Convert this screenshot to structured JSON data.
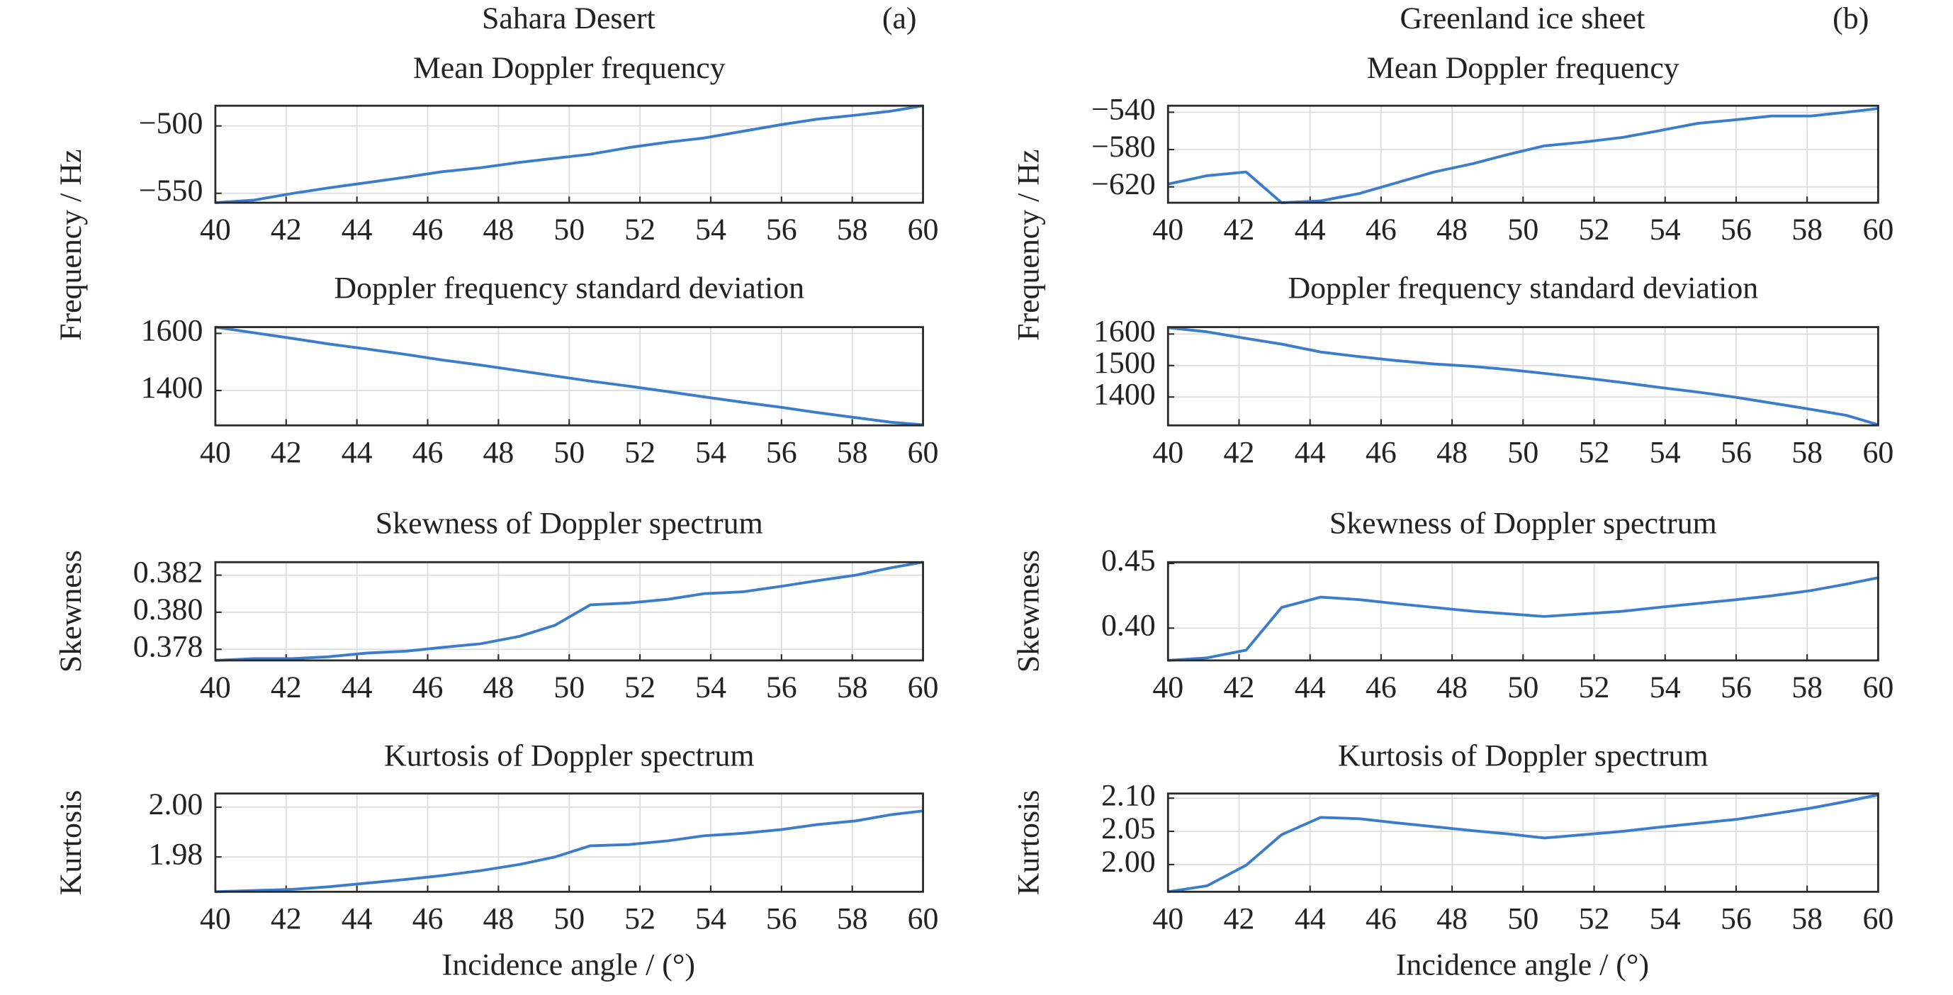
{
  "figure": {
    "columns": [
      {
        "title": "Sahara Desert",
        "tag": "(a)",
        "ylabel": "Frequency / Hz",
        "xlabel": "Incidence angle / (°)"
      },
      {
        "title": "Greenland ice sheet",
        "tag": "(b)",
        "ylabel": "Frequency / Hz",
        "xlabel": "Incidence angle / (°)"
      }
    ]
  },
  "chart_data": [
    {
      "type": "line",
      "title": "Mean Doppler frequency",
      "color": "#3c7ccc",
      "grid": true,
      "x": [
        40,
        41.1,
        42.2,
        43.2,
        44.3,
        45.4,
        46.4,
        47.5,
        48.6,
        49.6,
        50.6,
        51.7,
        52.8,
        53.8,
        54.9,
        56,
        57,
        58.1,
        59.1,
        60
      ],
      "values": [
        -557,
        -555,
        -550,
        -546,
        -542,
        -538,
        -534,
        -531,
        -527,
        -524,
        -521,
        -516,
        -512,
        -509,
        -504,
        -499,
        -495,
        -492,
        -489,
        -485
      ],
      "xlim": [
        40,
        60
      ],
      "ylim": [
        -557,
        -485
      ],
      "xticks": [
        40,
        42,
        44,
        46,
        48,
        50,
        52,
        54,
        56,
        58,
        60
      ],
      "yticks": [
        {
          "value": -550,
          "label": "−550"
        },
        {
          "value": -500,
          "label": "−500"
        }
      ]
    },
    {
      "type": "line",
      "title": "Doppler frequency standard deviation",
      "color": "#3c7ccc",
      "grid": true,
      "x": [
        40,
        41.1,
        42.2,
        43.2,
        44.3,
        45.4,
        46.4,
        47.5,
        48.6,
        49.6,
        50.6,
        51.7,
        52.8,
        53.8,
        54.9,
        56,
        57,
        58.1,
        59.1,
        60
      ],
      "values": [
        1622,
        1602,
        1582,
        1563,
        1545,
        1526,
        1507,
        1489,
        1469,
        1451,
        1433,
        1415,
        1396,
        1378,
        1359,
        1341,
        1323,
        1305,
        1289,
        1280
      ],
      "xlim": [
        40,
        60
      ],
      "ylim": [
        1278,
        1622
      ],
      "xticks": [
        40,
        42,
        44,
        46,
        48,
        50,
        52,
        54,
        56,
        58,
        60
      ],
      "yticks": [
        1400,
        1600
      ]
    },
    {
      "type": "line",
      "title": "Skewness of Doppler spectrum",
      "ylabel": "Skewness",
      "color": "#3c7ccc",
      "grid": true,
      "x": [
        40,
        41.1,
        42.2,
        43.2,
        44.3,
        45.4,
        46.4,
        47.5,
        48.6,
        49.6,
        50.6,
        51.7,
        52.8,
        53.8,
        54.9,
        56,
        57,
        58.1,
        59.1,
        60
      ],
      "values": [
        0.3774,
        0.3775,
        0.3775,
        0.3776,
        0.3778,
        0.3779,
        0.3781,
        0.3783,
        0.3787,
        0.3793,
        0.3804,
        0.3805,
        0.3807,
        0.381,
        0.3811,
        0.3814,
        0.3817,
        0.382,
        0.3824,
        0.3827
      ],
      "xlim": [
        40,
        60
      ],
      "ylim": [
        0.3774,
        0.3827
      ],
      "xticks": [
        40,
        42,
        44,
        46,
        48,
        50,
        52,
        54,
        56,
        58,
        60
      ],
      "yticks": [
        0.378,
        {
          "value": 0.38,
          "label": "0.380"
        },
        0.382
      ]
    },
    {
      "type": "line",
      "title": "Kurtosis of Doppler spectrum",
      "ylabel": "Kurtosis",
      "color": "#3c7ccc",
      "grid": true,
      "x": [
        40,
        41.1,
        42.2,
        43.2,
        44.3,
        45.4,
        46.4,
        47.5,
        48.6,
        49.6,
        50.6,
        51.7,
        52.8,
        53.8,
        54.9,
        56,
        57,
        58.1,
        59.1,
        60
      ],
      "values": [
        1.966,
        1.9665,
        1.967,
        1.968,
        1.9695,
        1.971,
        1.9725,
        1.9745,
        1.977,
        1.98,
        1.9845,
        1.985,
        1.9865,
        1.9885,
        1.9895,
        1.991,
        1.993,
        1.9945,
        1.997,
        1.9985
      ],
      "xlim": [
        40,
        60
      ],
      "ylim": [
        1.966,
        2.0055
      ],
      "xticks": [
        40,
        42,
        44,
        46,
        48,
        50,
        52,
        54,
        56,
        58,
        60
      ],
      "yticks": [
        1.98,
        {
          "value": 2,
          "label": "2.00"
        }
      ]
    },
    {
      "type": "line",
      "title": "Mean Doppler frequency",
      "color": "#3c7ccc",
      "grid": true,
      "x": [
        40,
        41.1,
        42.2,
        43.2,
        44.3,
        45.4,
        46.4,
        47.5,
        48.6,
        49.6,
        50.6,
        51.7,
        52.8,
        53.8,
        54.9,
        56,
        57,
        58.1,
        59.1,
        60
      ],
      "values": [
        -617,
        -608,
        -604,
        -637,
        -635,
        -627,
        -616,
        -604,
        -595,
        -585,
        -576,
        -572,
        -567,
        -560,
        -552,
        -548,
        -544,
        -544,
        -540,
        -536
      ],
      "xlim": [
        40,
        60
      ],
      "ylim": [
        -637,
        -533
      ],
      "xticks": [
        40,
        42,
        44,
        46,
        48,
        50,
        52,
        54,
        56,
        58,
        60
      ],
      "yticks": [
        {
          "value": -620,
          "label": "−620"
        },
        {
          "value": -580,
          "label": "−580"
        },
        {
          "value": -540,
          "label": "−540"
        }
      ]
    },
    {
      "type": "line",
      "title": "Doppler frequency standard deviation",
      "color": "#3c7ccc",
      "grid": true,
      "x": [
        40,
        41.1,
        42.2,
        43.2,
        44.3,
        45.4,
        46.4,
        47.5,
        48.6,
        49.6,
        50.6,
        51.7,
        52.8,
        53.8,
        54.9,
        56,
        57,
        58.1,
        59.1,
        60
      ],
      "values": [
        1620,
        1607,
        1586,
        1568,
        1543,
        1528,
        1516,
        1505,
        1497,
        1487,
        1475,
        1461,
        1446,
        1431,
        1416,
        1399,
        1381,
        1361,
        1342,
        1312
      ],
      "xlim": [
        40,
        60
      ],
      "ylim": [
        1310,
        1622
      ],
      "xticks": [
        40,
        42,
        44,
        46,
        48,
        50,
        52,
        54,
        56,
        58,
        60
      ],
      "yticks": [
        1400,
        1500,
        1600
      ]
    },
    {
      "type": "line",
      "title": "Skewness of Doppler spectrum",
      "ylabel": "Skewness",
      "color": "#3c7ccc",
      "grid": true,
      "x": [
        40,
        41.1,
        42.2,
        43.2,
        44.3,
        45.4,
        46.4,
        47.5,
        48.6,
        49.6,
        50.6,
        51.7,
        52.8,
        53.8,
        54.9,
        56,
        57,
        58.1,
        59.1,
        60
      ],
      "values": [
        0.375,
        0.377,
        0.383,
        0.416,
        0.424,
        0.422,
        0.419,
        0.416,
        0.413,
        0.411,
        0.409,
        0.411,
        0.413,
        0.416,
        0.419,
        0.422,
        0.425,
        0.429,
        0.434,
        0.439
      ],
      "xlim": [
        40,
        60
      ],
      "ylim": [
        0.375,
        0.451
      ],
      "xticks": [
        40,
        42,
        44,
        46,
        48,
        50,
        52,
        54,
        56,
        58,
        60
      ],
      "yticks": [
        {
          "value": 0.4,
          "label": "0.40"
        },
        0.45
      ]
    },
    {
      "type": "line",
      "title": "Kurtosis of Doppler spectrum",
      "ylabel": "Kurtosis",
      "color": "#3c7ccc",
      "grid": true,
      "x": [
        40,
        41.1,
        42.2,
        43.2,
        44.3,
        45.4,
        46.4,
        47.5,
        48.6,
        49.6,
        50.6,
        51.7,
        52.8,
        53.8,
        54.9,
        56,
        57,
        58.1,
        59.1,
        60
      ],
      "values": [
        1.959,
        1.968,
        1.999,
        2.045,
        2.071,
        2.069,
        2.063,
        2.057,
        2.051,
        2.046,
        2.04,
        2.045,
        2.05,
        2.056,
        2.062,
        2.068,
        2.076,
        2.085,
        2.095,
        2.105
      ],
      "xlim": [
        40,
        60
      ],
      "ylim": [
        1.959,
        2.107
      ],
      "xticks": [
        40,
        42,
        44,
        46,
        48,
        50,
        52,
        54,
        56,
        58,
        60
      ],
      "yticks": [
        {
          "value": 2,
          "label": "2.00"
        },
        2.05,
        {
          "value": 2.1,
          "label": "2.10"
        }
      ]
    }
  ]
}
